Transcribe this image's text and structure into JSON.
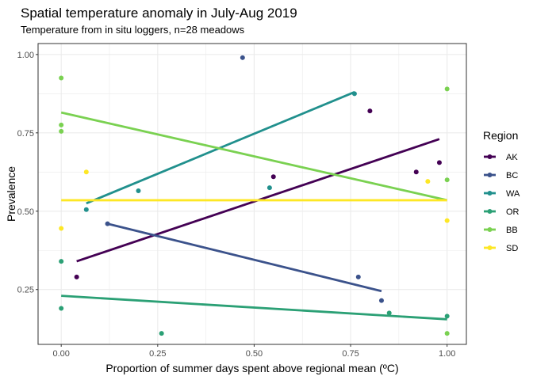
{
  "chart_data": {
    "type": "scatter",
    "title": "Spatial temperature anomaly in July-Aug 2019",
    "subtitle": "Temperature from in situ loggers, n=28 meadows",
    "xlabel": "Proportion of summer days spent above regional mean (ºC)",
    "ylabel": "Prevalence",
    "xlim": [
      -0.06,
      1.05
    ],
    "ylim": [
      0.075,
      1.035
    ],
    "xticks": [
      0,
      0.25,
      0.5,
      0.75,
      1
    ],
    "xtick_labels": [
      "0.00",
      "0.25",
      "0.50",
      "0.75",
      "1.00"
    ],
    "yticks": [
      0.25,
      0.5,
      0.75,
      1
    ],
    "ytick_labels": [
      "0.25",
      "0.50",
      "0.75",
      "1.00"
    ],
    "grid": true,
    "legend": {
      "title": "Region",
      "placement": "right"
    },
    "series": [
      {
        "name": "AK",
        "color": "#440154",
        "points": [
          [
            0.04,
            0.29
          ],
          [
            0.8,
            0.82
          ],
          [
            0.55,
            0.61
          ],
          [
            0.92,
            0.625
          ],
          [
            0.98,
            0.655
          ]
        ],
        "fit": [
          [
            0.04,
            0.34
          ],
          [
            0.98,
            0.73
          ]
        ]
      },
      {
        "name": "BC",
        "color": "#3b528b",
        "points": [
          [
            0.12,
            0.46
          ],
          [
            0.77,
            0.29
          ],
          [
            0.83,
            0.215
          ],
          [
            0.47,
            0.99
          ]
        ],
        "fit": [
          [
            0.12,
            0.46
          ],
          [
            0.83,
            0.245
          ]
        ]
      },
      {
        "name": "WA",
        "color": "#21908d",
        "points": [
          [
            0.065,
            0.505
          ],
          [
            0.2,
            0.565
          ],
          [
            0.54,
            0.575
          ],
          [
            0.76,
            0.875
          ]
        ],
        "fit": [
          [
            0.065,
            0.525
          ],
          [
            0.76,
            0.88
          ]
        ]
      },
      {
        "name": "OR",
        "color": "#2ba075",
        "points": [
          [
            0.0,
            0.34
          ],
          [
            0.0,
            0.19
          ],
          [
            0.26,
            0.11
          ],
          [
            0.85,
            0.175
          ],
          [
            1.0,
            0.165
          ]
        ],
        "fit": [
          [
            0.0,
            0.23
          ],
          [
            1.0,
            0.155
          ]
        ]
      },
      {
        "name": "BB",
        "color": "#7ad151",
        "points": [
          [
            0.0,
            0.925
          ],
          [
            0.0,
            0.775
          ],
          [
            0.0,
            0.755
          ],
          [
            1.0,
            0.89
          ],
          [
            1.0,
            0.6
          ],
          [
            1.0,
            0.11
          ]
        ],
        "fit": [
          [
            0.0,
            0.815
          ],
          [
            1.0,
            0.535
          ]
        ]
      },
      {
        "name": "SD",
        "color": "#fde725",
        "points": [
          [
            0.0,
            0.445
          ],
          [
            0.065,
            0.625
          ],
          [
            0.95,
            0.595
          ],
          [
            1.0,
            0.47
          ]
        ],
        "fit": [
          [
            0.0,
            0.535
          ],
          [
            1.0,
            0.535
          ]
        ]
      }
    ]
  }
}
